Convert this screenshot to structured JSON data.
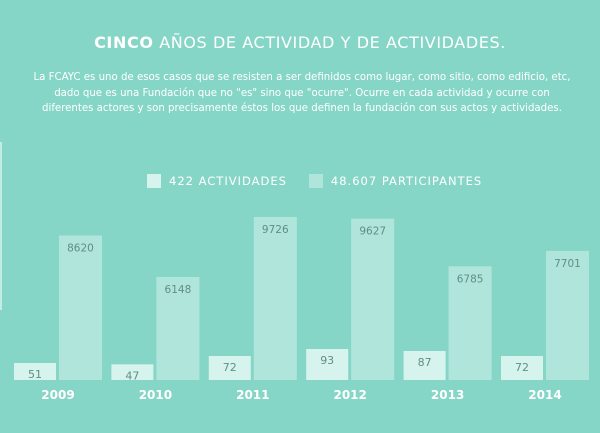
{
  "header": {
    "title_bold": "CINCO",
    "title_rest": " AÑOS DE ACTIVIDAD Y DE ACTIVIDADES.",
    "intro": "La FCAYC es uno de esos casos que se resisten a ser definidos como lugar, como sitio, como edificio, etc, dado que es una Fundación que no \"es\" sino que \"ocurre\". Ocurre en cada actividad y ocurre con diferentes actores y son precisamente éstos los que definen la fundación con sus actos y actividades."
  },
  "legend": {
    "actividades": "422 ACTIVIDADES",
    "participantes": "48.607 PARTICIPANTES"
  },
  "colors": {
    "background": "#86d6c8",
    "actividades": "#d6f3ee",
    "participantes": "#b0e5dc",
    "value_text": "#5f8f87",
    "year_text": "#ffffff"
  },
  "chart_data": {
    "type": "bar",
    "categories": [
      "2009",
      "2010",
      "2011",
      "2012",
      "2013",
      "2014"
    ],
    "series": [
      {
        "name": "422 ACTIVIDADES",
        "values": [
          51,
          47,
          72,
          93,
          87,
          72
        ]
      },
      {
        "name": "48.607 PARTICIPANTES",
        "values": [
          8620,
          6148,
          9726,
          9627,
          6785,
          7701
        ]
      }
    ],
    "title": "CINCO AÑOS DE ACTIVIDAD Y DE ACTIVIDADES.",
    "legend_position": "top",
    "grid": false
  }
}
